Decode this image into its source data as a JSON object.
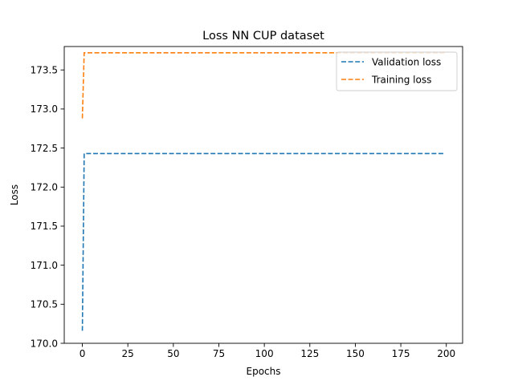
{
  "chart_data": {
    "type": "line",
    "title": "Loss NN CUP dataset",
    "xlabel": "Epochs",
    "ylabel": "Loss",
    "xlim": [
      -9.95,
      208.95
    ],
    "ylim": [
      170.0,
      173.8
    ],
    "xticks": [
      0,
      25,
      50,
      75,
      100,
      125,
      150,
      175,
      200
    ],
    "yticks": [
      170.0,
      170.5,
      171.0,
      171.5,
      172.0,
      172.5,
      173.0,
      173.5
    ],
    "ytick_labels": [
      "170.0",
      "170.5",
      "171.0",
      "171.5",
      "172.0",
      "172.5",
      "173.0",
      "173.5"
    ],
    "grid": false,
    "legend_position": "upper-right",
    "series": [
      {
        "name": "Validation loss",
        "color": "#1f77b4",
        "line_style": "dashed",
        "points": [
          [
            0,
            170.16
          ],
          [
            1,
            172.43
          ],
          [
            199,
            172.43
          ]
        ]
      },
      {
        "name": "Training loss",
        "color": "#ff7f0e",
        "line_style": "dashed",
        "points": [
          [
            0,
            172.88
          ],
          [
            1,
            173.72
          ],
          [
            199,
            173.72
          ]
        ]
      }
    ]
  }
}
